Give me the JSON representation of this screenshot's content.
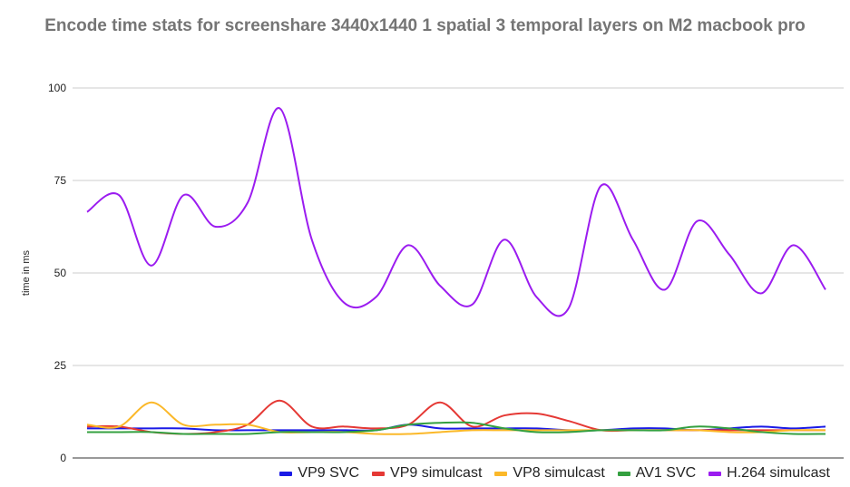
{
  "chart_data": {
    "type": "line",
    "title": "Encode time stats for screenshare 3440x1440 1 spatial 3 temporal layers on M2 macbook pro",
    "xlabel": "",
    "ylabel": "time in ms",
    "ylim": [
      0,
      100
    ],
    "yticks": [
      "0",
      "25",
      "50",
      "75",
      "100"
    ],
    "grid": true,
    "legend_position": "bottom-right",
    "series": [
      {
        "name": "VP9 SVC",
        "color": "#1a1ae6",
        "values": [
          8,
          8,
          8,
          8,
          7.5,
          7.5,
          7.5,
          7.5,
          7.5,
          7.5,
          9,
          8,
          8,
          8,
          8,
          7.5,
          7.5,
          8,
          8,
          7.5,
          8,
          8.5,
          8,
          8.5
        ]
      },
      {
        "name": "VP9 simulcast",
        "color": "#e53935",
        "values": [
          8.5,
          8.5,
          7,
          6.5,
          7,
          9,
          15.5,
          8.5,
          8.5,
          8,
          9,
          15,
          8.5,
          11.5,
          12,
          10,
          7.5,
          7.5,
          7.5,
          7.5,
          7.5,
          7.5,
          7.5,
          7.5
        ]
      },
      {
        "name": "VP8 simulcast",
        "color": "#fbb829",
        "values": [
          9,
          8.5,
          15,
          9,
          9,
          9,
          7,
          7,
          7,
          6.5,
          6.5,
          7,
          7.5,
          7.5,
          7.5,
          7.5,
          7.5,
          7.5,
          7.5,
          7.5,
          7,
          7,
          7.5,
          7.5
        ]
      },
      {
        "name": "AV1 SVC",
        "color": "#34a040",
        "values": [
          7,
          7,
          7,
          6.5,
          6.5,
          6.5,
          7,
          7,
          7,
          7.5,
          9,
          9.5,
          9.5,
          8,
          7,
          7,
          7.5,
          7.5,
          7.5,
          8.5,
          8,
          7,
          6.5,
          6.5
        ]
      },
      {
        "name": "H.264 simulcast",
        "color": "#9b1cf0",
        "values": [
          66.5,
          71,
          52,
          71,
          62.5,
          69,
          94.5,
          59,
          42,
          43.5,
          57.5,
          46.5,
          41.5,
          59,
          43.5,
          40.5,
          73.5,
          59,
          45.5,
          64,
          55,
          44.5,
          57.5,
          45.5
        ]
      }
    ]
  }
}
